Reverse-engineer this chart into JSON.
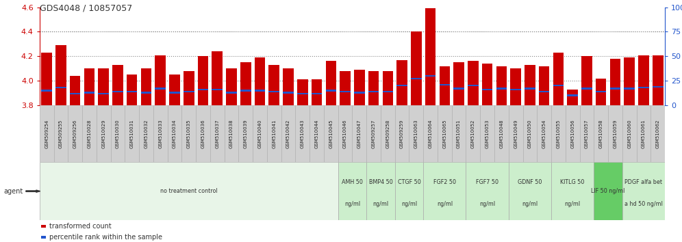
{
  "title": "GDS4048 / 10857057",
  "ylim_left": [
    3.8,
    4.6
  ],
  "ylim_right": [
    0,
    100
  ],
  "yticks_left": [
    3.8,
    4.0,
    4.2,
    4.4,
    4.6
  ],
  "yticks_right": [
    0,
    25,
    50,
    75,
    100
  ],
  "bar_color": "#cc0000",
  "blue_color": "#2255cc",
  "samples": [
    "GSM509254",
    "GSM509255",
    "GSM509256",
    "GSM510028",
    "GSM510029",
    "GSM510030",
    "GSM510031",
    "GSM510032",
    "GSM510033",
    "GSM510034",
    "GSM510035",
    "GSM510036",
    "GSM510037",
    "GSM510038",
    "GSM510039",
    "GSM510040",
    "GSM510041",
    "GSM510042",
    "GSM510043",
    "GSM510044",
    "GSM510045",
    "GSM510046",
    "GSM510047",
    "GSM509257",
    "GSM509258",
    "GSM509259",
    "GSM510063",
    "GSM510064",
    "GSM510065",
    "GSM510051",
    "GSM510052",
    "GSM510053",
    "GSM510048",
    "GSM510049",
    "GSM510050",
    "GSM510054",
    "GSM510055",
    "GSM510056",
    "GSM510057",
    "GSM510058",
    "GSM510059",
    "GSM510060",
    "GSM510061",
    "GSM510062"
  ],
  "transformed_counts": [
    4.23,
    4.29,
    4.04,
    4.1,
    4.1,
    4.13,
    4.05,
    4.1,
    4.21,
    4.05,
    4.08,
    4.2,
    4.24,
    4.1,
    4.15,
    4.19,
    4.13,
    4.1,
    4.01,
    4.01,
    4.16,
    4.08,
    4.09,
    4.08,
    4.08,
    4.17,
    4.4,
    4.59,
    4.12,
    4.15,
    4.16,
    4.14,
    4.12,
    4.1,
    4.13,
    4.12,
    4.23,
    3.93,
    4.2,
    4.02,
    4.18,
    4.19,
    4.21,
    4.21
  ],
  "percentile_ranks": [
    15,
    18,
    12,
    13,
    12,
    14,
    14,
    13,
    17,
    13,
    14,
    16,
    16,
    13,
    15,
    15,
    14,
    13,
    12,
    12,
    15,
    14,
    13,
    14,
    14,
    20,
    27,
    30,
    21,
    17,
    20,
    16,
    17,
    16,
    17,
    14,
    20,
    10,
    17,
    14,
    17,
    17,
    18,
    19
  ],
  "agent_groups": [
    {
      "label": "no treatment control",
      "start": 0,
      "end": 20,
      "color": "#e8f5e8",
      "label2": ""
    },
    {
      "label": "AMH 50",
      "label2": "ng/ml",
      "start": 21,
      "end": 22,
      "color": "#cceecc"
    },
    {
      "label": "BMP4 50",
      "label2": "ng/ml",
      "start": 23,
      "end": 24,
      "color": "#cceecc"
    },
    {
      "label": "CTGF 50",
      "label2": "ng/ml",
      "start": 25,
      "end": 26,
      "color": "#cceecc"
    },
    {
      "label": "FGF2 50",
      "label2": "ng/ml",
      "start": 27,
      "end": 29,
      "color": "#cceecc"
    },
    {
      "label": "FGF7 50",
      "label2": "ng/ml",
      "start": 30,
      "end": 32,
      "color": "#cceecc"
    },
    {
      "label": "GDNF 50",
      "label2": "ng/ml",
      "start": 33,
      "end": 35,
      "color": "#cceecc"
    },
    {
      "label": "KITLG 50",
      "label2": "ng/ml",
      "start": 36,
      "end": 38,
      "color": "#cceecc"
    },
    {
      "label": "LIF 50 ng/ml",
      "label2": "",
      "start": 39,
      "end": 40,
      "color": "#66cc66"
    },
    {
      "label": "PDGF alfa bet",
      "label2": "a hd 50 ng/ml",
      "start": 41,
      "end": 43,
      "color": "#cceecc"
    }
  ],
  "grid_yticks": [
    4.0,
    4.2,
    4.4
  ],
  "tick_label_bg": "#d0d0d0",
  "tick_label_border": "#aaaaaa",
  "figure_bg": "#ffffff",
  "legend_red_label": "transformed count",
  "legend_blue_label": "percentile rank within the sample",
  "agent_label": "agent",
  "left_axis_color": "#cc0000",
  "right_axis_color": "#2255cc"
}
